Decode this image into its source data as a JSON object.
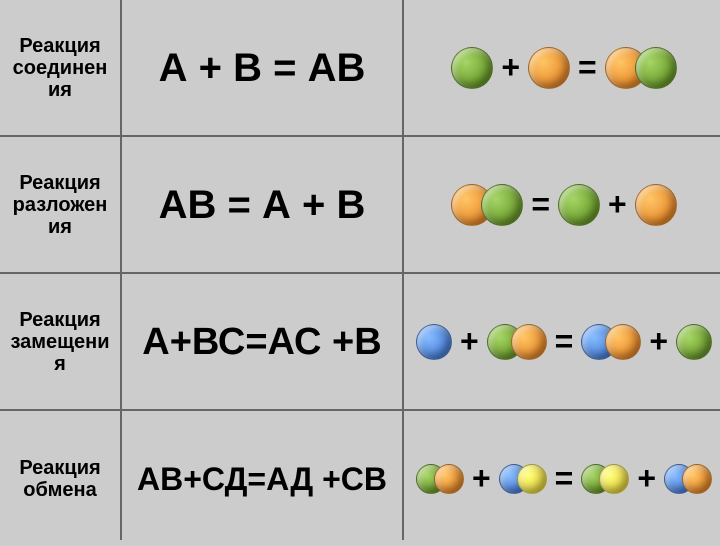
{
  "colors": {
    "green": "#6a9a2a",
    "orange": "#e88a2a",
    "blue": "#4a80d8",
    "yellow": "#e8d840",
    "bg": "#cccccc",
    "border": "#666666",
    "text": "#000000"
  },
  "atom_size": {
    "large": 42,
    "medium": 36,
    "small": 30
  },
  "rows": [
    {
      "label": "Реакция соединен ия",
      "equation": "А + В = АВ",
      "equation_fontsize": 40,
      "diagram": [
        {
          "type": "atom",
          "color": "green",
          "size": "large"
        },
        {
          "type": "op",
          "text": "+"
        },
        {
          "type": "atom",
          "color": "orange",
          "size": "large"
        },
        {
          "type": "op",
          "text": "="
        },
        {
          "type": "molecule",
          "atoms": [
            {
              "color": "orange",
              "size": "large"
            },
            {
              "color": "green",
              "size": "large"
            }
          ]
        }
      ]
    },
    {
      "label": "Реакция разложен ия",
      "equation": "АВ = А + В",
      "equation_fontsize": 40,
      "diagram": [
        {
          "type": "molecule",
          "atoms": [
            {
              "color": "orange",
              "size": "large"
            },
            {
              "color": "green",
              "size": "large"
            }
          ]
        },
        {
          "type": "op",
          "text": "="
        },
        {
          "type": "atom",
          "color": "green",
          "size": "large"
        },
        {
          "type": "op",
          "text": "+"
        },
        {
          "type": "atom",
          "color": "orange",
          "size": "large"
        }
      ]
    },
    {
      "label": "Реакция замещени я",
      "equation": "А+ВС=АС +В",
      "equation_fontsize": 38,
      "diagram": [
        {
          "type": "atom",
          "color": "blue",
          "size": "medium"
        },
        {
          "type": "op",
          "text": "+"
        },
        {
          "type": "molecule",
          "atoms": [
            {
              "color": "green",
              "size": "medium"
            },
            {
              "color": "orange",
              "size": "medium"
            }
          ]
        },
        {
          "type": "op",
          "text": "="
        },
        {
          "type": "molecule",
          "atoms": [
            {
              "color": "blue",
              "size": "medium"
            },
            {
              "color": "orange",
              "size": "medium"
            }
          ]
        },
        {
          "type": "op",
          "text": "+"
        },
        {
          "type": "atom",
          "color": "green",
          "size": "medium"
        }
      ]
    },
    {
      "label": "Реакция обмена",
      "equation": "АВ+СД=АД +СВ",
      "equation_fontsize": 32,
      "diagram": [
        {
          "type": "molecule",
          "atoms": [
            {
              "color": "green",
              "size": "small"
            },
            {
              "color": "orange",
              "size": "small"
            }
          ]
        },
        {
          "type": "op",
          "text": "+"
        },
        {
          "type": "molecule",
          "atoms": [
            {
              "color": "blue",
              "size": "small"
            },
            {
              "color": "yellow",
              "size": "small"
            }
          ]
        },
        {
          "type": "op",
          "text": "="
        },
        {
          "type": "molecule",
          "atoms": [
            {
              "color": "green",
              "size": "small"
            },
            {
              "color": "yellow",
              "size": "small"
            }
          ]
        },
        {
          "type": "op",
          "text": "+"
        },
        {
          "type": "molecule",
          "atoms": [
            {
              "color": "blue",
              "size": "small"
            },
            {
              "color": "orange",
              "size": "small"
            }
          ]
        }
      ]
    }
  ]
}
